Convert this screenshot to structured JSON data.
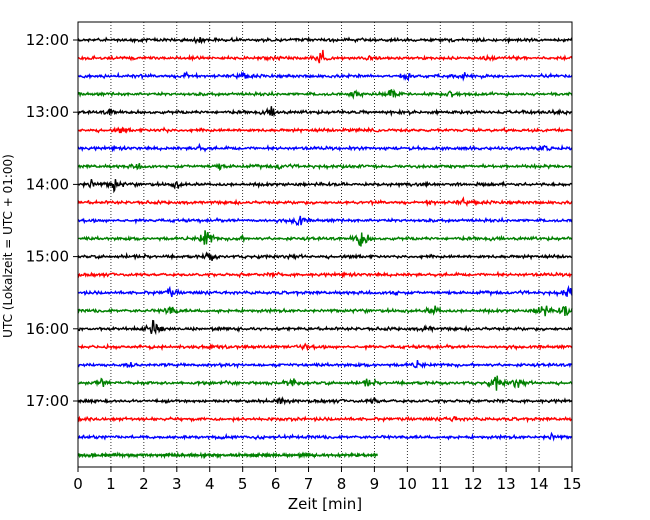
{
  "chart_data": {
    "type": "line",
    "title": "",
    "xlabel": "Zeit  [min]",
    "ylabel": "UTC (Lokalzeit = UTC + 01:00)",
    "xlim": [
      0,
      15
    ],
    "x_ticks": [
      0,
      1,
      2,
      3,
      4,
      5,
      6,
      7,
      8,
      9,
      10,
      11,
      12,
      13,
      14,
      15
    ],
    "x_tick_labels": [
      "0",
      "1",
      "2",
      "3",
      "4",
      "5",
      "6",
      "7",
      "8",
      "9",
      "10",
      "11",
      "12",
      "13",
      "14",
      "15"
    ],
    "y_tick_labels": [
      "12:00",
      "13:00",
      "14:00",
      "15:00",
      "16:00",
      "17:00"
    ],
    "trace_interval_min": 15,
    "grid": "vertical dotted",
    "colors": [
      "#000000",
      "#ff0000",
      "#0000ff",
      "#008000"
    ],
    "traces": [
      {
        "start": "12:00",
        "color": "#000000",
        "events": [
          [
            3.7,
            0.25
          ]
        ]
      },
      {
        "start": "12:15",
        "color": "#ff0000",
        "events": [
          [
            7.4,
            1.0
          ],
          [
            8.9,
            0.3
          ],
          [
            12.5,
            0.3
          ]
        ]
      },
      {
        "start": "12:30",
        "color": "#0000ff",
        "events": [
          [
            3.3,
            0.6
          ],
          [
            5.0,
            0.3
          ],
          [
            10.0,
            0.4
          ],
          [
            11.7,
            0.3
          ]
        ]
      },
      {
        "start": "12:45",
        "color": "#008000",
        "events": [
          [
            8.4,
            0.4
          ],
          [
            9.5,
            0.6
          ],
          [
            11.3,
            0.3
          ]
        ]
      },
      {
        "start": "13:00",
        "color": "#000000",
        "events": [
          [
            1.0,
            0.4
          ],
          [
            5.9,
            0.6
          ]
        ]
      },
      {
        "start": "13:15",
        "color": "#ff0000",
        "events": [
          [
            1.3,
            0.3
          ],
          [
            2.6,
            0.2
          ]
        ]
      },
      {
        "start": "13:30",
        "color": "#0000ff",
        "events": [
          [
            3.7,
            0.3
          ],
          [
            14.1,
            0.3
          ]
        ]
      },
      {
        "start": "13:45",
        "color": "#008000",
        "events": [
          [
            1.8,
            0.3
          ],
          [
            4.3,
            0.3
          ],
          [
            6.1,
            0.3
          ]
        ]
      },
      {
        "start": "14:00",
        "color": "#000000",
        "events": [
          [
            0.4,
            0.6
          ],
          [
            1.1,
            0.9
          ],
          [
            3.0,
            0.4
          ]
        ]
      },
      {
        "start": "14:15",
        "color": "#ff0000",
        "events": [
          [
            10.7,
            0.3
          ],
          [
            11.7,
            0.3
          ]
        ]
      },
      {
        "start": "14:30",
        "color": "#0000ff",
        "events": [
          [
            6.7,
            1.0
          ]
        ]
      },
      {
        "start": "14:45",
        "color": "#008000",
        "events": [
          [
            3.9,
            1.6
          ],
          [
            8.6,
            1.6
          ],
          [
            4.9,
            0.3
          ]
        ]
      },
      {
        "start": "15:00",
        "color": "#000000",
        "events": [
          [
            4.0,
            0.6
          ]
        ]
      },
      {
        "start": "15:15",
        "color": "#ff0000",
        "events": [
          [
            6.0,
            0.2
          ]
        ]
      },
      {
        "start": "15:30",
        "color": "#0000ff",
        "events": [
          [
            2.8,
            0.6
          ],
          [
            9.6,
            0.3
          ],
          [
            14.9,
            0.9
          ]
        ]
      },
      {
        "start": "15:45",
        "color": "#008000",
        "events": [
          [
            2.8,
            0.8
          ],
          [
            10.8,
            0.8
          ],
          [
            14.1,
            1.2
          ],
          [
            14.8,
            0.8
          ]
        ]
      },
      {
        "start": "16:00",
        "color": "#000000",
        "events": [
          [
            2.3,
            1.0
          ],
          [
            10.6,
            0.4
          ]
        ]
      },
      {
        "start": "16:15",
        "color": "#ff0000",
        "events": [
          [
            2.3,
            0.3
          ],
          [
            6.9,
            0.2
          ]
        ]
      },
      {
        "start": "16:30",
        "color": "#0000ff",
        "events": [
          [
            1.6,
            0.3
          ],
          [
            10.3,
            0.4
          ]
        ]
      },
      {
        "start": "16:45",
        "color": "#008000",
        "events": [
          [
            0.7,
            0.5
          ],
          [
            6.5,
            0.6
          ],
          [
            8.8,
            0.4
          ],
          [
            12.7,
            1.0
          ],
          [
            13.3,
            0.5
          ]
        ]
      },
      {
        "start": "17:00",
        "color": "#000000",
        "events": [
          [
            6.1,
            0.4
          ],
          [
            9.0,
            0.3
          ]
        ]
      },
      {
        "start": "17:15",
        "color": "#ff0000",
        "events": [
          [
            11.4,
            0.3
          ]
        ]
      },
      {
        "start": "17:30",
        "color": "#0000ff",
        "events": [
          [
            14.4,
            0.4
          ]
        ]
      },
      {
        "start": "17:45",
        "color": "#008000",
        "end": 9.1,
        "events": []
      }
    ]
  }
}
